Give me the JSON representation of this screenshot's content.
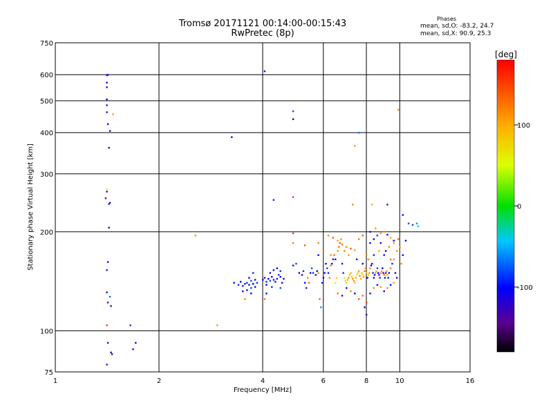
{
  "header": {
    "title": "Tromsø 20171121 00:14:00-00:15:43",
    "subtitle": "RwPretec (8p)",
    "phases_heading": "Phases",
    "phase_o": "mean, sd,O: -83.2, 24.7",
    "phase_x": "mean, sd,X:  90.9, 25.3"
  },
  "chart_data": {
    "type": "scatter",
    "xlabel": "Frequency [MHz]",
    "ylabel": "Stationary phase Virtual Height [km]",
    "xscale": "log",
    "yscale": "log",
    "xlim": [
      1,
      16
    ],
    "ylim": [
      75,
      750
    ],
    "xticks": [
      1,
      2,
      4,
      6,
      8,
      10,
      16
    ],
    "yticks": [
      75,
      100,
      200,
      300,
      400,
      500,
      600,
      750
    ],
    "grid": true,
    "colorbar": {
      "label": "[deg]",
      "range": [
        -180,
        180
      ],
      "ticks": [
        -100,
        0,
        100
      ],
      "colormap": "rainbow"
    },
    "points": [
      [
        1.42,
        600,
        -120
      ],
      [
        1.41,
        598,
        -100
      ],
      [
        1.41,
        568,
        -110
      ],
      [
        1.41,
        550,
        -120
      ],
      [
        1.41,
        505,
        -110
      ],
      [
        1.41,
        485,
        -120
      ],
      [
        1.41,
        462,
        -130
      ],
      [
        1.42,
        425,
        -120
      ],
      [
        1.44,
        405,
        -110
      ],
      [
        1.47,
        455,
        110
      ],
      [
        1.43,
        360,
        -120
      ],
      [
        1.41,
        270,
        50
      ],
      [
        1.41,
        265,
        -130
      ],
      [
        1.4,
        253,
        -140
      ],
      [
        1.44,
        245,
        -110
      ],
      [
        1.43,
        243,
        -90
      ],
      [
        1.43,
        206,
        -100
      ],
      [
        1.42,
        162,
        -110
      ],
      [
        1.41,
        153,
        -130
      ],
      [
        1.41,
        131,
        -120
      ],
      [
        1.44,
        127,
        -70
      ],
      [
        1.42,
        122,
        -130
      ],
      [
        1.45,
        119,
        -140
      ],
      [
        1.41,
        104,
        150
      ],
      [
        1.42,
        92,
        -120
      ],
      [
        1.45,
        86,
        -110
      ],
      [
        1.46,
        85,
        -130
      ],
      [
        1.41,
        79,
        -140
      ],
      [
        1.65,
        104,
        -90
      ],
      [
        1.71,
        92,
        -100
      ],
      [
        1.68,
        88,
        -100
      ],
      [
        2.55,
        195,
        110
      ],
      [
        2.95,
        104,
        110
      ],
      [
        3.25,
        388,
        -110
      ],
      [
        4.05,
        615,
        -100
      ],
      [
        4.3,
        250,
        -90
      ],
      [
        4.9,
        465,
        -80
      ],
      [
        4.9,
        440,
        -160
      ],
      [
        4.9,
        255,
        160
      ],
      [
        4.9,
        198,
        150
      ],
      [
        4.9,
        185,
        120
      ],
      [
        5.3,
        182,
        140
      ],
      [
        5.8,
        185,
        120
      ],
      [
        7.4,
        365,
        110
      ],
      [
        7.6,
        400,
        -70
      ],
      [
        7.3,
        242,
        120
      ],
      [
        8.3,
        242,
        100
      ],
      [
        9.2,
        242,
        -140
      ],
      [
        9.9,
        470,
        110
      ],
      [
        10.2,
        225,
        -100
      ],
      [
        10.6,
        212,
        -80
      ],
      [
        10.9,
        210,
        -80
      ],
      [
        11.2,
        212,
        -60
      ],
      [
        11.3,
        208,
        -40
      ],
      [
        10.4,
        188,
        -120
      ],
      [
        3.3,
        140,
        -110
      ],
      [
        3.4,
        138,
        -90
      ],
      [
        3.45,
        141,
        -100
      ],
      [
        3.5,
        137,
        -110
      ],
      [
        3.55,
        139,
        -100
      ],
      [
        3.6,
        140,
        -90
      ],
      [
        3.65,
        138,
        -120
      ],
      [
        3.7,
        142,
        -80
      ],
      [
        3.75,
        139,
        -100
      ],
      [
        3.8,
        143,
        -110
      ],
      [
        3.85,
        140,
        -90
      ],
      [
        3.5,
        132,
        -100
      ],
      [
        3.6,
        133,
        -110
      ],
      [
        3.7,
        135,
        -80
      ],
      [
        3.55,
        125,
        120
      ],
      [
        3.7,
        130,
        -120
      ],
      [
        3.8,
        136,
        -100
      ],
      [
        3.65,
        145,
        -100
      ],
      [
        3.75,
        150,
        -90
      ],
      [
        4.0,
        143,
        -100
      ],
      [
        4.05,
        145,
        -110
      ],
      [
        4.1,
        141,
        -90
      ],
      [
        4.15,
        144,
        -100
      ],
      [
        4.2,
        142,
        -80
      ],
      [
        4.25,
        146,
        -100
      ],
      [
        4.3,
        143,
        -120
      ],
      [
        4.35,
        141,
        -100
      ],
      [
        4.4,
        144,
        -110
      ],
      [
        4.45,
        148,
        -90
      ],
      [
        4.5,
        146,
        -100
      ],
      [
        4.2,
        150,
        -110
      ],
      [
        4.3,
        153,
        -100
      ],
      [
        4.4,
        155,
        -120
      ],
      [
        4.5,
        152,
        -90
      ],
      [
        4.1,
        138,
        -100
      ],
      [
        4.05,
        125,
        130
      ],
      [
        4.55,
        140,
        -110
      ],
      [
        4.6,
        144,
        -100
      ],
      [
        4.5,
        135,
        -80
      ],
      [
        4.1,
        130,
        -100
      ],
      [
        4.25,
        136,
        -90
      ],
      [
        4.9,
        158,
        -100
      ],
      [
        5.0,
        160,
        -80
      ],
      [
        5.1,
        150,
        -100
      ],
      [
        5.2,
        148,
        -110
      ],
      [
        5.25,
        152,
        -90
      ],
      [
        5.3,
        140,
        -100
      ],
      [
        5.35,
        135,
        -120
      ],
      [
        5.4,
        145,
        120
      ],
      [
        5.45,
        140,
        130
      ],
      [
        5.5,
        150,
        -100
      ],
      [
        5.55,
        155,
        -80
      ],
      [
        5.6,
        150,
        -90
      ],
      [
        5.7,
        148,
        -110
      ],
      [
        5.75,
        152,
        -100
      ],
      [
        5.8,
        150,
        110
      ],
      [
        5.85,
        125,
        140
      ],
      [
        5.9,
        118,
        -60
      ],
      [
        5.95,
        140,
        -90
      ],
      [
        6.0,
        145,
        -100
      ],
      [
        6.05,
        150,
        -110
      ],
      [
        6.1,
        160,
        -100
      ],
      [
        6.15,
        155,
        -80
      ],
      [
        6.2,
        150,
        -90
      ],
      [
        6.25,
        145,
        120
      ],
      [
        6.3,
        158,
        120
      ],
      [
        6.35,
        160,
        -100
      ],
      [
        6.4,
        165,
        -110
      ],
      [
        6.45,
        170,
        130
      ],
      [
        6.5,
        140,
        60
      ],
      [
        6.55,
        145,
        80
      ],
      [
        6.6,
        175,
        110
      ],
      [
        6.65,
        180,
        130
      ],
      [
        6.7,
        185,
        140
      ],
      [
        6.75,
        190,
        120
      ],
      [
        6.8,
        160,
        -100
      ],
      [
        6.85,
        150,
        -90
      ],
      [
        6.9,
        145,
        60
      ],
      [
        6.95,
        142,
        70
      ],
      [
        7.0,
        140,
        80
      ],
      [
        7.05,
        143,
        100
      ],
      [
        7.1,
        145,
        110
      ],
      [
        7.15,
        148,
        90
      ],
      [
        7.2,
        150,
        100
      ],
      [
        7.25,
        146,
        80
      ],
      [
        7.3,
        144,
        120
      ],
      [
        7.35,
        142,
        110
      ],
      [
        7.4,
        140,
        90
      ],
      [
        7.45,
        145,
        100
      ],
      [
        7.5,
        148,
        60
      ],
      [
        7.55,
        150,
        80
      ],
      [
        7.6,
        152,
        110
      ],
      [
        7.65,
        147,
        120
      ],
      [
        7.7,
        144,
        100
      ],
      [
        7.75,
        150,
        90
      ],
      [
        7.8,
        148,
        70
      ],
      [
        7.85,
        146,
        110
      ],
      [
        7.9,
        152,
        130
      ],
      [
        7.95,
        155,
        120
      ],
      [
        8.0,
        150,
        100
      ],
      [
        8.05,
        145,
        -100
      ],
      [
        8.1,
        148,
        80
      ],
      [
        8.15,
        150,
        110
      ],
      [
        8.2,
        155,
        120
      ],
      [
        8.25,
        158,
        -100
      ],
      [
        8.3,
        160,
        -110
      ],
      [
        8.35,
        150,
        -90
      ],
      [
        8.4,
        145,
        -100
      ],
      [
        8.45,
        148,
        -120
      ],
      [
        8.5,
        150,
        110
      ],
      [
        8.55,
        152,
        100
      ],
      [
        8.6,
        155,
        -80
      ],
      [
        8.65,
        150,
        -100
      ],
      [
        8.7,
        148,
        -110
      ],
      [
        8.75,
        145,
        -90
      ],
      [
        8.8,
        150,
        120
      ],
      [
        8.85,
        152,
        110
      ],
      [
        8.9,
        155,
        -100
      ],
      [
        8.95,
        150,
        -110
      ],
      [
        9.0,
        148,
        130
      ],
      [
        9.05,
        145,
        -100
      ],
      [
        9.1,
        150,
        -90
      ],
      [
        9.15,
        152,
        110
      ],
      [
        9.2,
        148,
        100
      ],
      [
        9.25,
        145,
        -100
      ],
      [
        9.3,
        150,
        -110
      ],
      [
        9.4,
        155,
        120
      ],
      [
        9.5,
        160,
        -90
      ],
      [
        9.6,
        165,
        110
      ],
      [
        9.7,
        150,
        -100
      ],
      [
        6.6,
        130,
        130
      ],
      [
        6.8,
        128,
        -100
      ],
      [
        7.0,
        135,
        -110
      ],
      [
        7.2,
        132,
        120
      ],
      [
        7.4,
        130,
        -100
      ],
      [
        7.6,
        125,
        140
      ],
      [
        7.8,
        128,
        130
      ],
      [
        8.0,
        122,
        150
      ],
      [
        8.0,
        112,
        -120
      ],
      [
        7.9,
        118,
        -110
      ],
      [
        8.2,
        130,
        -100
      ],
      [
        8.4,
        135,
        120
      ],
      [
        8.6,
        138,
        -100
      ],
      [
        8.8,
        136,
        110
      ],
      [
        9.0,
        132,
        -110
      ],
      [
        9.2,
        135,
        120
      ],
      [
        9.4,
        138,
        -100
      ],
      [
        9.6,
        140,
        110
      ],
      [
        9.8,
        145,
        -120
      ],
      [
        6.2,
        195,
        120
      ],
      [
        6.4,
        192,
        140
      ],
      [
        6.6,
        188,
        110
      ],
      [
        6.8,
        183,
        130
      ],
      [
        7.0,
        180,
        120
      ],
      [
        7.2,
        178,
        140
      ],
      [
        7.4,
        176,
        110
      ],
      [
        7.6,
        190,
        130
      ],
      [
        7.8,
        195,
        140
      ],
      [
        8.0,
        170,
        120
      ],
      [
        8.2,
        185,
        -110
      ],
      [
        8.4,
        190,
        -100
      ],
      [
        8.6,
        195,
        -90
      ],
      [
        8.8,
        198,
        110
      ],
      [
        9.0,
        200,
        120
      ],
      [
        9.2,
        196,
        -100
      ],
      [
        9.4,
        192,
        110
      ],
      [
        9.6,
        188,
        -110
      ],
      [
        9.8,
        175,
        120
      ],
      [
        10.0,
        180,
        110
      ],
      [
        10.2,
        170,
        -100
      ],
      [
        8.2,
        200,
        -110
      ],
      [
        8.5,
        205,
        110
      ],
      [
        8.8,
        185,
        -120
      ],
      [
        9.1,
        175,
        -100
      ],
      [
        9.4,
        165,
        130
      ],
      [
        7.1,
        170,
        110
      ],
      [
        6.9,
        175,
        120
      ],
      [
        7.5,
        165,
        -100
      ],
      [
        7.8,
        160,
        -110
      ],
      [
        8.1,
        165,
        120
      ],
      [
        8.4,
        170,
        -90
      ],
      [
        8.7,
        175,
        110
      ],
      [
        9.0,
        170,
        -100
      ],
      [
        9.3,
        180,
        120
      ],
      [
        9.6,
        185,
        110
      ],
      [
        9.9,
        190,
        130
      ],
      [
        10.1,
        160,
        110
      ],
      [
        6.5,
        165,
        -100
      ],
      [
        6.3,
        170,
        110
      ],
      [
        5.8,
        170,
        -100
      ],
      [
        6.0,
        175,
        120
      ]
    ]
  }
}
